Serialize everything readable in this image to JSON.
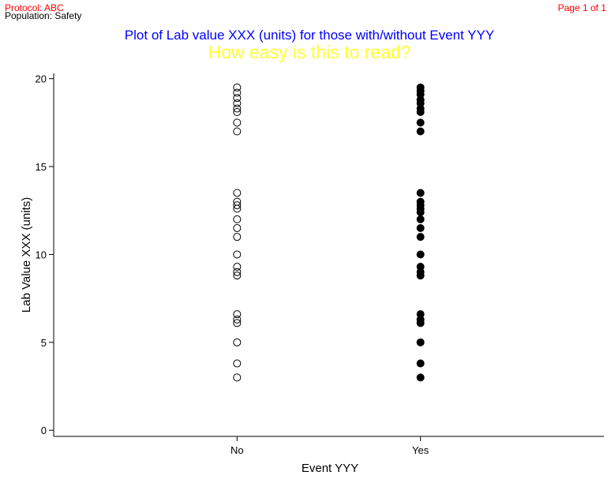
{
  "header": {
    "protocol": "Protocol: ABC",
    "population": "Population: Safety",
    "page": "Page 1 of 1"
  },
  "chart_data": {
    "type": "scatter",
    "title": "Plot of Lab value XXX (units) for those with/without Event YYY",
    "subtitle": "How easy is this to read?",
    "x_label": "Event YYY",
    "y_label": "Lab Value XXX (units)",
    "categories": [
      "No",
      "Yes"
    ],
    "series": [
      {
        "color": "#000000",
        "fill": "none",
        "values": [
          19.5,
          19.2,
          18.9,
          18.6,
          18.3,
          18.1,
          17.5,
          17.0,
          13.5,
          13.0,
          12.8,
          12.6,
          12.0,
          11.5,
          11.0,
          10.0,
          9.3,
          9.0,
          8.8,
          6.6,
          6.3,
          6.1,
          5.0,
          3.8,
          3.0
        ]
      },
      {
        "color": "#000000",
        "fill": "#000000",
        "values": [
          19.5,
          19.3,
          19.1,
          18.8,
          18.6,
          18.3,
          18.1,
          17.5,
          17.0,
          13.5,
          13.0,
          12.8,
          12.6,
          12.4,
          12.0,
          11.5,
          11.0,
          10.0,
          9.3,
          9.0,
          8.8,
          6.6,
          6.3,
          6.1,
          5.0,
          3.8,
          3.0
        ]
      }
    ],
    "ylim": [
      -0.35,
      20.3
    ],
    "yticks": [
      0,
      5,
      10,
      15,
      20
    ]
  }
}
